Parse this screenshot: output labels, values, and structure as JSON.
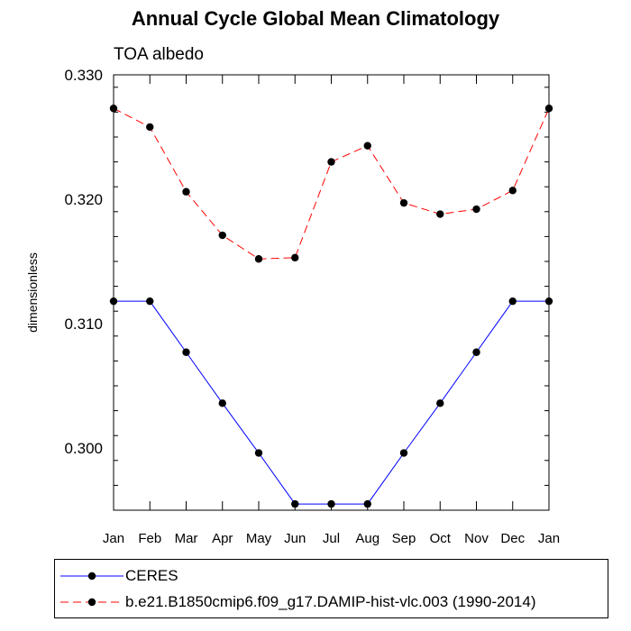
{
  "chart_data": {
    "type": "line",
    "title": "Annual Cycle Global Mean Climatology",
    "subtitle": "TOA albedo",
    "xlabel": "",
    "ylabel": "dimensionless",
    "categories": [
      "Jan",
      "Feb",
      "Mar",
      "Apr",
      "May",
      "Jun",
      "Jul",
      "Aug",
      "Sep",
      "Oct",
      "Nov",
      "Dec",
      "Jan"
    ],
    "ylim": [
      0.295,
      0.33
    ],
    "yticks": [
      0.3,
      0.31,
      0.32,
      0.33
    ],
    "ytick_labels": [
      "0.300",
      "0.310",
      "0.320",
      "0.330"
    ],
    "series": [
      {
        "name": "CERES",
        "color": "#0000ff",
        "dash": "solid",
        "values": [
          0.3118,
          0.3118,
          0.3077,
          0.3036,
          0.2996,
          0.2955,
          0.2955,
          0.2955,
          0.2996,
          0.3036,
          0.3077,
          0.3118,
          0.3118
        ]
      },
      {
        "name": "b.e21.B1850cmip6.f09_g17.DAMIP-hist-vlc.003 (1990-2014)",
        "color": "#ff0000",
        "dash": "dashed",
        "values": [
          0.3273,
          0.3258,
          0.3206,
          0.3171,
          0.3152,
          0.3153,
          0.323,
          0.3243,
          0.3197,
          0.3188,
          0.3192,
          0.3207,
          0.3273
        ]
      }
    ],
    "legend_position": "bottom"
  }
}
